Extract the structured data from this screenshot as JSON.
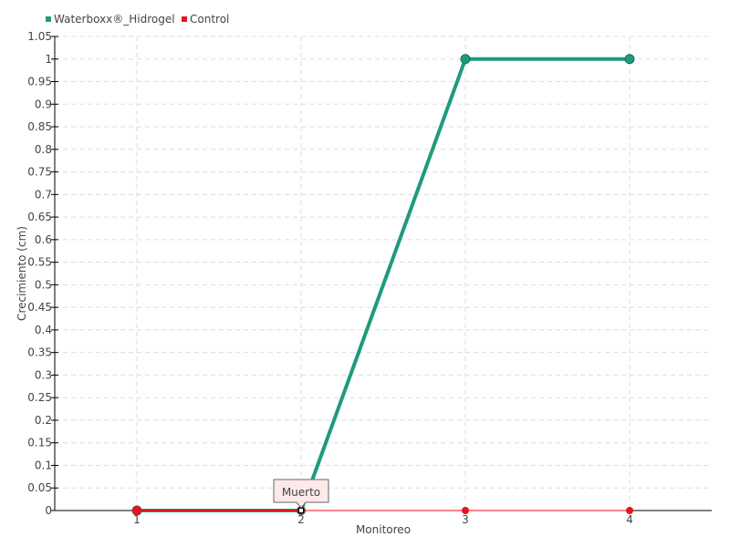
{
  "chart_data": {
    "type": "line",
    "title": "",
    "xlabel": "Monitoreo",
    "ylabel": "Crecimiento (cm)",
    "categories": [
      "1",
      "2",
      "3",
      "4"
    ],
    "ylim": [
      0,
      1.05
    ],
    "ytick_step": 0.05,
    "yticks": [
      "0",
      "0.05",
      "0.1",
      "0.15",
      "0.2",
      "0.25",
      "0.3",
      "0.35",
      "0.4",
      "0.45",
      "0.5",
      "0.55",
      "0.6",
      "0.65",
      "0.7",
      "0.75",
      "0.8",
      "0.85",
      "0.9",
      "0.95",
      "1",
      "1.05"
    ],
    "grid": true,
    "legend_position": "top-left",
    "series": [
      {
        "name": "Waterboxx®_Hidrogel",
        "color": "#1f9a7c",
        "values": [
          0,
          0,
          1,
          1
        ]
      },
      {
        "name": "Control",
        "color": "#e8121e",
        "values": [
          0,
          0,
          0,
          0
        ]
      }
    ],
    "annotations": [
      {
        "text": "Muerto",
        "x": "2",
        "y": 0
      }
    ]
  }
}
